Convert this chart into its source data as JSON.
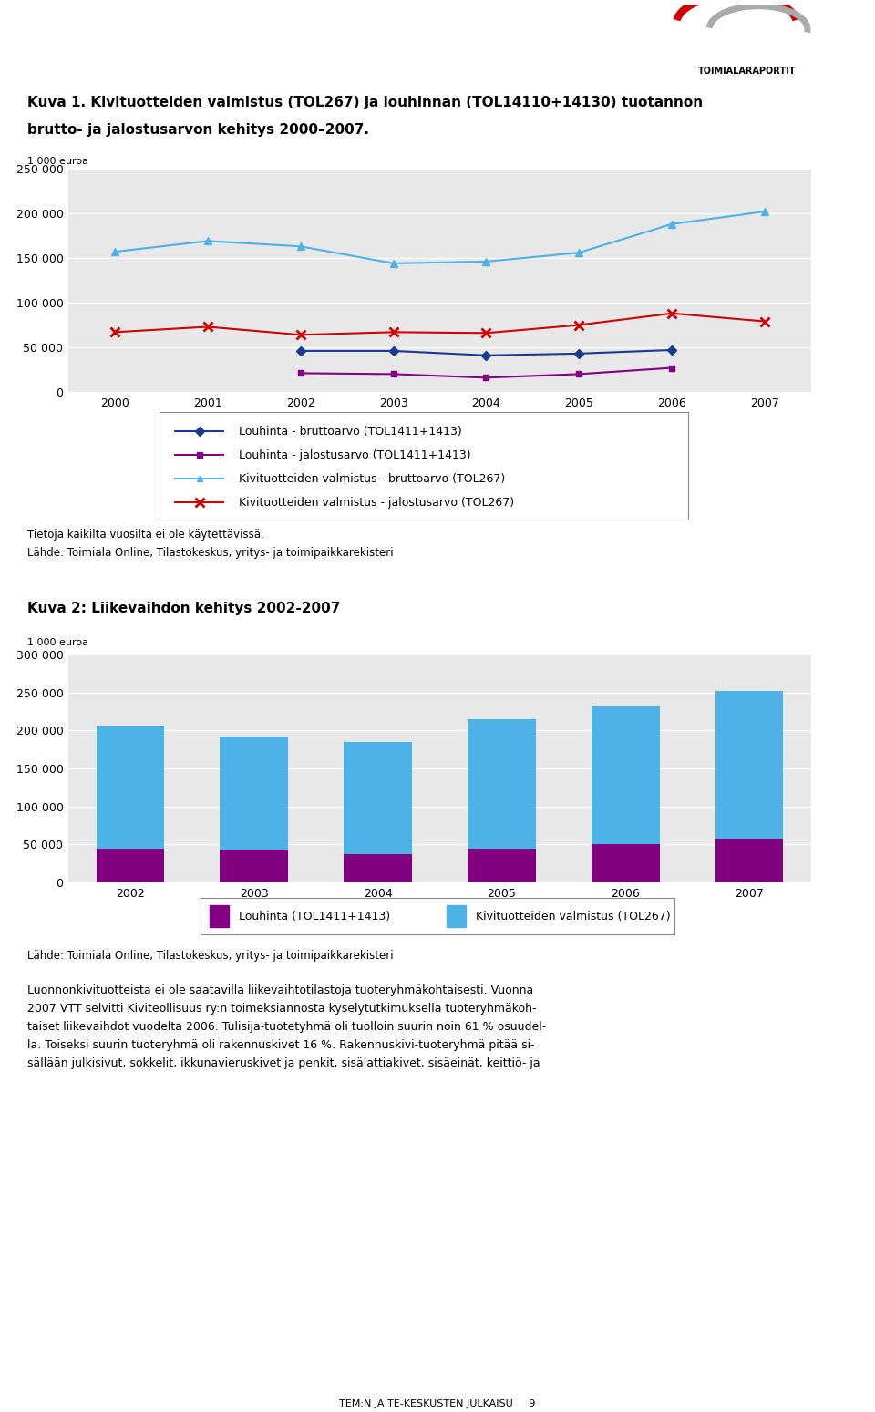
{
  "chart1_title1": "Kuva 1. Kivituotteiden valmistus (TOL267) ja louhinnan (TOL14110+14130) tuotannon",
  "chart1_title2": "brutto- ja jalostusarvon kehitys 2000–2007.",
  "chart1_ylabel": "1 000 euroa",
  "chart1_ylim": [
    0,
    250000
  ],
  "chart1_yticks": [
    0,
    50000,
    100000,
    150000,
    200000,
    250000
  ],
  "chart1_ytick_labels": [
    "0",
    "50 000",
    "100 000",
    "150 000",
    "200 000",
    "250 000"
  ],
  "chart1_years_all": [
    2000,
    2001,
    2002,
    2003,
    2004,
    2005,
    2006,
    2007
  ],
  "louhinta_brutto_years": [
    2002,
    2003,
    2004,
    2005,
    2006
  ],
  "louhinta_brutto": [
    46000,
    46000,
    41000,
    43000,
    47000
  ],
  "louhinta_jalostus_years": [
    2002,
    2003,
    2004,
    2005,
    2006
  ],
  "louhinta_jalostus": [
    21000,
    20000,
    16000,
    20000,
    27000
  ],
  "kivi_brutto_years": [
    2000,
    2001,
    2002,
    2003,
    2004,
    2005,
    2006,
    2007
  ],
  "kivi_brutto": [
    157000,
    169000,
    163000,
    144000,
    146000,
    156000,
    188000,
    202000
  ],
  "kivi_jalostus_years": [
    2000,
    2001,
    2002,
    2003,
    2004,
    2005,
    2006,
    2007
  ],
  "kivi_jalostus": [
    67000,
    73000,
    64000,
    67000,
    66000,
    75000,
    88000,
    79000
  ],
  "chart1_legend": [
    "Louhinta - bruttoarvo (TOL1411+1413)",
    "Louhinta - jalostusarvo (TOL1411+1413)",
    "Kivituotteiden valmistus - bruttoarvo (TOL267)",
    "Kivituotteiden valmistus - jalostusarvo (TOL267)"
  ],
  "chart1_colors": [
    "#1a3a8f",
    "#800080",
    "#4db3e6",
    "#cc0000"
  ],
  "chart1_note": "Tietoja kaikilta vuosilta ei ole käytettävissä.",
  "chart1_source": "Lähde: Toimiala Online, Tilastokeskus, yritys- ja toimipaikkarekisteri",
  "chart2_title": "Kuva 2: Liikevaihdon kehitys 2002-2007",
  "chart2_ylabel": "1 000 euroa",
  "chart2_ylim": [
    0,
    300000
  ],
  "chart2_yticks": [
    0,
    50000,
    100000,
    150000,
    200000,
    250000,
    300000
  ],
  "chart2_ytick_labels": [
    "0",
    "50 000",
    "100 000",
    "150 000",
    "200 000",
    "250 000",
    "300 000"
  ],
  "chart2_years": [
    2002,
    2003,
    2004,
    2005,
    2006,
    2007
  ],
  "chart2_louhinta": [
    44000,
    43000,
    37000,
    44000,
    50000,
    58000
  ],
  "chart2_kivi": [
    163000,
    149000,
    148000,
    171000,
    182000,
    194000
  ],
  "chart2_colors": [
    "#800080",
    "#4db3e6"
  ],
  "chart2_legend": [
    "Louhinta (TOL1411+1413)",
    "Kivituotteiden valmistus (TOL267)"
  ],
  "chart2_source": "Lähde: Toimiala Online, Tilastokeskus, yritys- ja toimipaikkarekisteri",
  "body_lines": [
    "Luonnonkivituotteista ei ole saatavilla liikevaihtotilastoja tuoteryhmäkohtaisesti. Vuonna",
    "2007 VTT selvitti Kiviteollisuus ry:n toimeksiannosta kyselytutkimuksella tuoteryhmäkoh-",
    "taiset liikevaihdot vuodelta 2006. Tulisija-tuotetyhmä oli tuolloin suurin noin 61 % osuudel-",
    "la. Toiseksi suurin tuoteryhmä oli rakennuskivet 16 %. Rakennuskivi-tuoteryhmä pitää si-",
    "sällään julkisivut, sokkelit, ikkunavieruskivet ja penkit, sisälattiakivet, sisäeinät, keittiö- ja"
  ],
  "page_footer": "TEM:N JA TE-KESKUSTEN JULKAISU     9",
  "bg_color": "#e8e8e8"
}
